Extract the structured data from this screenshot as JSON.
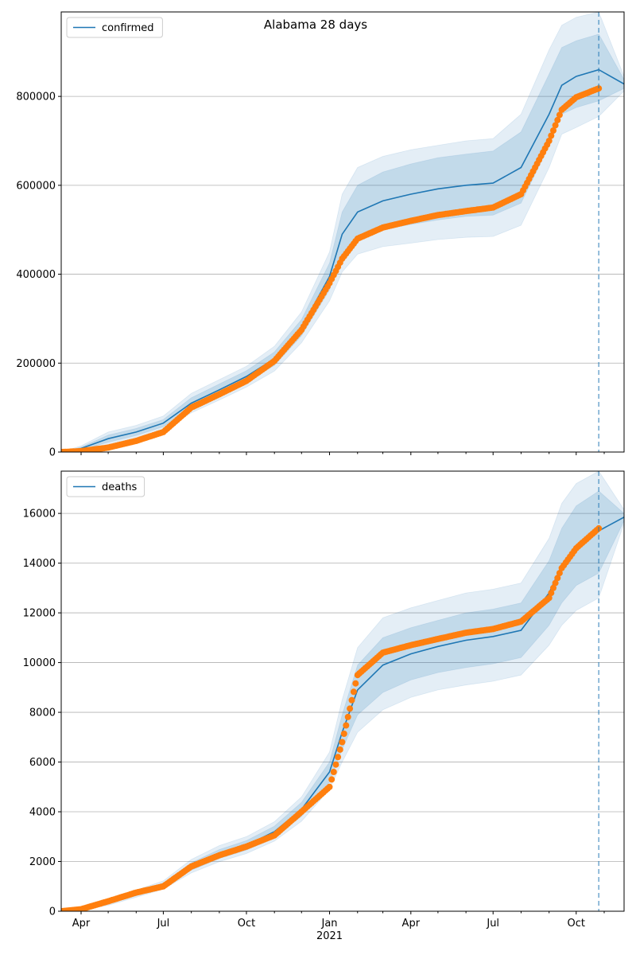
{
  "chart_data": [
    {
      "type": "line",
      "title": "Alabama 28 days",
      "legend": {
        "position": "top-left",
        "entries": [
          "confirmed"
        ]
      },
      "ylim": [
        0,
        990000
      ],
      "yticks": [
        0,
        200000,
        400000,
        600000,
        800000
      ],
      "ytick_labels": [
        "0",
        "200000",
        "400000",
        "600000",
        "800000"
      ],
      "grid": "y",
      "xlim": [
        "2020-03-10",
        "2021-11-23"
      ],
      "forecast_start": "2021-10-26",
      "series": [
        {
          "name": "confirmed",
          "kind": "model",
          "color": "#1f77b4",
          "x": [
            "2020-03-10",
            "2020-04-01",
            "2020-05-01",
            "2020-06-01",
            "2020-07-01",
            "2020-08-01",
            "2020-09-01",
            "2020-10-01",
            "2020-11-01",
            "2020-12-01",
            "2021-01-01",
            "2021-01-15",
            "2021-02-01",
            "2021-03-01",
            "2021-04-01",
            "2021-05-01",
            "2021-06-01",
            "2021-07-01",
            "2021-08-01",
            "2021-09-01",
            "2021-09-15",
            "2021-10-01",
            "2021-10-26",
            "2021-11-23"
          ],
          "y": [
            0,
            8000,
            30000,
            45000,
            65000,
            110000,
            140000,
            170000,
            210000,
            280000,
            395000,
            490000,
            540000,
            565000,
            580000,
            592000,
            600000,
            605000,
            640000,
            760000,
            825000,
            845000,
            860000,
            828000
          ],
          "bands": [
            {
              "lower": [
                0,
                5000,
                22000,
                37000,
                57000,
                98000,
                127000,
                157000,
                195000,
                262000,
                365000,
                440000,
                480000,
                500000,
                512000,
                522000,
                530000,
                533000,
                560000,
                690000,
                760000,
                775000,
                790000,
                818000
              ],
              "upper": [
                0,
                11000,
                38000,
                53000,
                73000,
                122000,
                153000,
                183000,
                225000,
                298000,
                425000,
                540000,
                600000,
                630000,
                648000,
                662000,
                670000,
                677000,
                720000,
                850000,
                910000,
                925000,
                940000,
                838000
              ]
            },
            {
              "lower": [
                0,
                3000,
                16000,
                30000,
                50000,
                88000,
                117000,
                146000,
                182000,
                246000,
                340000,
                405000,
                445000,
                462000,
                470000,
                478000,
                483000,
                485000,
                510000,
                640000,
                715000,
                730000,
                755000,
                812000
              ],
              "upper": [
                0,
                14000,
                45000,
                60000,
                81000,
                132000,
                163000,
                193000,
                238000,
                315000,
                450000,
                580000,
                640000,
                665000,
                680000,
                690000,
                700000,
                705000,
                760000,
                905000,
                960000,
                978000,
                990000,
                845000
              ]
            }
          ]
        },
        {
          "name": "",
          "kind": "observed",
          "color": "#ff7f0e",
          "x": [
            "2020-03-10",
            "2020-04-01",
            "2020-05-01",
            "2020-06-01",
            "2020-07-01",
            "2020-08-01",
            "2020-09-01",
            "2020-10-01",
            "2020-11-01",
            "2020-12-01",
            "2021-01-01",
            "2021-01-15",
            "2021-02-01",
            "2021-03-01",
            "2021-04-01",
            "2021-05-01",
            "2021-06-01",
            "2021-07-01",
            "2021-08-01",
            "2021-09-01",
            "2021-09-15",
            "2021-10-01",
            "2021-10-26"
          ],
          "y": [
            0,
            2000,
            10000,
            25000,
            45000,
            100000,
            130000,
            160000,
            205000,
            275000,
            380000,
            435000,
            480000,
            505000,
            520000,
            533000,
            542000,
            550000,
            580000,
            700000,
            770000,
            798000,
            818000
          ]
        }
      ]
    },
    {
      "type": "line",
      "title": "",
      "legend": {
        "position": "top-left",
        "entries": [
          "deaths"
        ]
      },
      "ylim": [
        0,
        17700
      ],
      "yticks": [
        0,
        2000,
        4000,
        6000,
        8000,
        10000,
        12000,
        14000,
        16000
      ],
      "ytick_labels": [
        "0",
        "2000",
        "4000",
        "6000",
        "8000",
        "10000",
        "12000",
        "14000",
        "16000"
      ],
      "grid": "y",
      "xlim": [
        "2020-03-10",
        "2021-11-23"
      ],
      "xticks": [
        "2020-04-01",
        "2020-07-01",
        "2020-10-01",
        "2021-01-01",
        "2021-04-01",
        "2021-07-01",
        "2021-10-01"
      ],
      "xtick_labels": [
        "Apr",
        "Jul",
        "Oct",
        "Jan",
        "Apr",
        "Jul",
        "Oct"
      ],
      "xtick_sublabels": [
        "",
        "",
        "",
        "2021",
        "",
        "",
        ""
      ],
      "forecast_start": "2021-10-26",
      "series": [
        {
          "name": "deaths",
          "kind": "model",
          "color": "#1f77b4",
          "x": [
            "2020-03-10",
            "2020-04-01",
            "2020-05-01",
            "2020-06-01",
            "2020-07-01",
            "2020-08-01",
            "2020-09-01",
            "2020-10-01",
            "2020-11-01",
            "2020-12-01",
            "2021-01-01",
            "2021-01-15",
            "2021-02-01",
            "2021-03-01",
            "2021-04-01",
            "2021-05-01",
            "2021-06-01",
            "2021-07-01",
            "2021-08-01",
            "2021-09-01",
            "2021-09-15",
            "2021-10-01",
            "2021-10-26",
            "2021-11-23"
          ],
          "y": [
            0,
            100,
            350,
            700,
            1050,
            1800,
            2300,
            2650,
            3200,
            4100,
            5600,
            7200,
            8900,
            9900,
            10350,
            10650,
            10900,
            11050,
            11300,
            12800,
            13900,
            14700,
            15300,
            15850
          ],
          "bands": [
            {
              "lower": [
                0,
                70,
                290,
                620,
                960,
                1650,
                2120,
                2460,
                2980,
                3820,
                5200,
                6500,
                7900,
                8800,
                9300,
                9600,
                9800,
                9950,
                10200,
                11500,
                12400,
                13100,
                13600,
                15700
              ],
              "upper": [
                0,
                130,
                410,
                780,
                1140,
                1950,
                2480,
                2840,
                3420,
                4380,
                6000,
                7900,
                9900,
                11000,
                11400,
                11700,
                12000,
                12150,
                12400,
                14100,
                15400,
                16300,
                16900,
                16000
              ]
            },
            {
              "lower": [
                0,
                50,
                240,
                560,
                890,
                1540,
                1990,
                2320,
                2820,
                3620,
                4900,
                6000,
                7200,
                8100,
                8600,
                8900,
                9100,
                9250,
                9500,
                10700,
                11500,
                12100,
                12600,
                15600
              ],
              "upper": [
                0,
                160,
                470,
                850,
                1220,
                2080,
                2640,
                3000,
                3600,
                4600,
                6400,
                8500,
                10600,
                11800,
                12200,
                12500,
                12800,
                12950,
                13200,
                15000,
                16400,
                17200,
                17700,
                16150
              ]
            }
          ]
        },
        {
          "name": "",
          "kind": "observed",
          "color": "#ff7f0e",
          "x": [
            "2020-03-10",
            "2020-04-01",
            "2020-05-01",
            "2020-06-01",
            "2020-07-01",
            "2020-08-01",
            "2020-09-01",
            "2020-10-01",
            "2020-11-01",
            "2020-12-01",
            "2021-01-01",
            "2021-01-15",
            "2021-02-01",
            "2021-03-01",
            "2021-04-01",
            "2021-05-01",
            "2021-06-01",
            "2021-07-01",
            "2021-08-01",
            "2021-09-01",
            "2021-09-15",
            "2021-10-01",
            "2021-10-26"
          ],
          "y": [
            0,
            80,
            400,
            750,
            1000,
            1800,
            2250,
            2600,
            3050,
            4000,
            5000,
            6800,
            9500,
            10400,
            10700,
            10950,
            11200,
            11350,
            11650,
            12600,
            13800,
            14600,
            15400
          ]
        }
      ]
    }
  ]
}
